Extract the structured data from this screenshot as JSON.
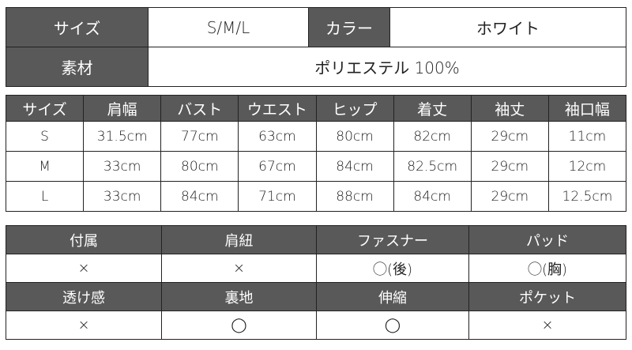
{
  "summary": {
    "size_label": "サイズ",
    "size_value": "S/M/L",
    "color_label": "カラー",
    "color_value": "ホワイト",
    "material_label": "素材",
    "material_value": "ポリエステル 100%"
  },
  "size_table": {
    "headers": [
      "サイズ",
      "肩幅",
      "バスト",
      "ウエスト",
      "ヒップ",
      "着丈",
      "袖丈",
      "袖口幅"
    ],
    "rows": [
      [
        "S",
        "31.5cm",
        "77cm",
        "63cm",
        "80cm",
        "82cm",
        "29cm",
        "11cm"
      ],
      [
        "M",
        "33cm",
        "80cm",
        "67cm",
        "84cm",
        "82.5cm",
        "29cm",
        "12cm"
      ],
      [
        "L",
        "33cm",
        "84cm",
        "71cm",
        "88cm",
        "84cm",
        "29cm",
        "12.5cm"
      ]
    ]
  },
  "features": {
    "row1_labels": [
      "付属",
      "肩紐",
      "ファスナー",
      "パッド"
    ],
    "row1_values": [
      "×",
      "×",
      "◯(後)",
      "◯(胸)"
    ],
    "row2_labels": [
      "透け感",
      "裏地",
      "伸縮",
      "ポケット"
    ],
    "row2_values": [
      "×",
      "◯",
      "◯",
      "×"
    ]
  },
  "colors": {
    "header_bg": "#595959",
    "header_text": "#ffffff",
    "border": "#222222"
  }
}
